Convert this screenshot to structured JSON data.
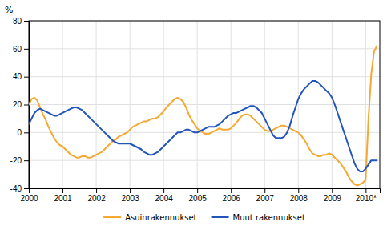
{
  "chart_data": {
    "type": "line",
    "ylabel": "%",
    "x": [
      2000.0,
      2000.083,
      2000.167,
      2000.25,
      2000.333,
      2000.417,
      2000.5,
      2000.583,
      2000.667,
      2000.75,
      2000.833,
      2000.917,
      2001.0,
      2001.083,
      2001.167,
      2001.25,
      2001.333,
      2001.417,
      2001.5,
      2001.583,
      2001.667,
      2001.75,
      2001.833,
      2001.917,
      2002.0,
      2002.083,
      2002.167,
      2002.25,
      2002.333,
      2002.417,
      2002.5,
      2002.583,
      2002.667,
      2002.75,
      2002.833,
      2002.917,
      2003.0,
      2003.083,
      2003.167,
      2003.25,
      2003.333,
      2003.417,
      2003.5,
      2003.583,
      2003.667,
      2003.75,
      2003.833,
      2003.917,
      2004.0,
      2004.083,
      2004.167,
      2004.25,
      2004.333,
      2004.417,
      2004.5,
      2004.583,
      2004.667,
      2004.75,
      2004.833,
      2004.917,
      2005.0,
      2005.083,
      2005.167,
      2005.25,
      2005.333,
      2005.417,
      2005.5,
      2005.583,
      2005.667,
      2005.75,
      2005.833,
      2005.917,
      2006.0,
      2006.083,
      2006.167,
      2006.25,
      2006.333,
      2006.417,
      2006.5,
      2006.583,
      2006.667,
      2006.75,
      2006.833,
      2006.917,
      2007.0,
      2007.083,
      2007.167,
      2007.25,
      2007.333,
      2007.417,
      2007.5,
      2007.583,
      2007.667,
      2007.75,
      2007.833,
      2007.917,
      2008.0,
      2008.083,
      2008.167,
      2008.25,
      2008.333,
      2008.417,
      2008.5,
      2008.583,
      2008.667,
      2008.75,
      2008.833,
      2008.917,
      2009.0,
      2009.083,
      2009.167,
      2009.25,
      2009.333,
      2009.417,
      2009.5,
      2009.583,
      2009.667,
      2009.75,
      2009.833,
      2009.917,
      2010.0,
      2010.083,
      2010.167,
      2010.25,
      2010.333
    ],
    "series": [
      {
        "name": "Asuinrakennukset",
        "color": "#F5A832",
        "values": [
          20,
          24,
          25,
          23,
          18,
          13,
          9,
          4,
          0,
          -4,
          -7,
          -9,
          -10,
          -12,
          -14,
          -16,
          -17,
          -18,
          -18,
          -17,
          -17,
          -18,
          -18,
          -17,
          -16,
          -15,
          -14,
          -12,
          -10,
          -8,
          -6,
          -5,
          -3,
          -2,
          -1,
          0,
          2,
          4,
          5,
          6,
          7,
          8,
          8,
          9,
          10,
          10,
          11,
          13,
          15,
          18,
          20,
          22,
          24,
          25,
          24,
          22,
          18,
          13,
          9,
          6,
          3,
          1,
          0,
          -1,
          -1,
          0,
          1,
          2,
          3,
          2,
          2,
          2,
          3,
          5,
          7,
          10,
          12,
          13,
          13,
          12,
          10,
          8,
          6,
          4,
          2,
          1,
          1,
          2,
          3,
          4,
          5,
          5,
          4,
          3,
          2,
          1,
          0,
          -2,
          -5,
          -8,
          -12,
          -15,
          -16,
          -17,
          -17,
          -16,
          -16,
          -15,
          -16,
          -18,
          -20,
          -22,
          -25,
          -28,
          -32,
          -35,
          -37,
          -38,
          -37,
          -36,
          -34,
          10,
          42,
          58,
          62
        ]
      },
      {
        "name": "Muut rakennukset",
        "color": "#2255BB",
        "values": [
          6,
          10,
          14,
          16,
          17,
          16,
          15,
          14,
          13,
          12,
          12,
          13,
          14,
          15,
          16,
          17,
          18,
          18,
          17,
          16,
          14,
          12,
          10,
          8,
          6,
          4,
          2,
          0,
          -2,
          -4,
          -6,
          -7,
          -8,
          -8,
          -8,
          -8,
          -8,
          -9,
          -10,
          -11,
          -12,
          -14,
          -15,
          -16,
          -16,
          -15,
          -14,
          -12,
          -10,
          -8,
          -6,
          -4,
          -2,
          0,
          0,
          1,
          2,
          2,
          1,
          0,
          0,
          1,
          2,
          3,
          4,
          4,
          4,
          5,
          6,
          8,
          10,
          12,
          13,
          14,
          14,
          15,
          16,
          17,
          18,
          19,
          19,
          18,
          16,
          14,
          10,
          6,
          2,
          -2,
          -4,
          -4,
          -4,
          -3,
          0,
          5,
          12,
          18,
          24,
          28,
          31,
          33,
          35,
          37,
          37,
          36,
          34,
          32,
          30,
          28,
          25,
          20,
          14,
          8,
          2,
          -4,
          -10,
          -16,
          -22,
          -26,
          -28,
          -28,
          -26,
          -23,
          -20,
          -20,
          -20
        ]
      }
    ],
    "xlim": [
      2000.0,
      2010.42
    ],
    "xticks": [
      2000,
      2001,
      2002,
      2003,
      2004,
      2005,
      2006,
      2007,
      2008,
      2009,
      {
        "value": 2010,
        "label": "2010*"
      }
    ],
    "ylim": [
      -40,
      80
    ],
    "yticks": [
      -40,
      -20,
      0,
      20,
      40,
      60,
      80
    ],
    "grid": true,
    "legend": "bottom"
  }
}
